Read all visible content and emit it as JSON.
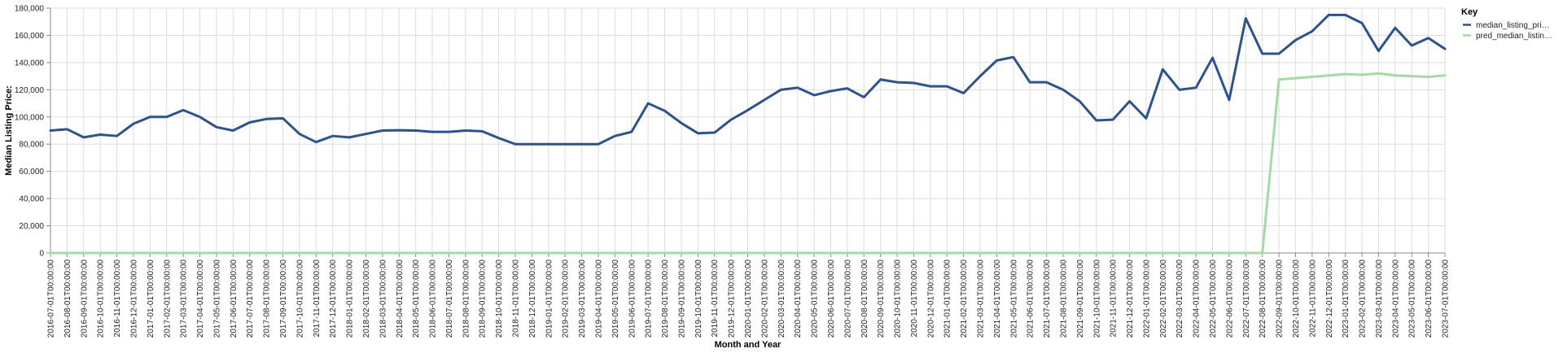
{
  "chart_data": {
    "type": "line",
    "title": "",
    "xlabel": "Month and Year",
    "ylabel": "Median Listing Price:",
    "ylim": [
      0,
      180000
    ],
    "yticks": [
      "0",
      "20,000",
      "40,000",
      "60,000",
      "80,000",
      "100,000",
      "120,000",
      "140,000",
      "160,000",
      "180,000"
    ],
    "grid": true,
    "legend": {
      "title": "Key",
      "placement": "top-right",
      "entries": [
        "median_listing_pri…",
        "pred_median_listin…"
      ]
    },
    "x": [
      "2016-07-01T00:00:00",
      "2016-08-01T00:00:00",
      "2016-09-01T00:00:00",
      "2016-10-01T00:00:00",
      "2016-11-01T00:00:00",
      "2016-12-01T00:00:00",
      "2017-01-01T00:00:00",
      "2017-02-01T00:00:00",
      "2017-03-01T00:00:00",
      "2017-04-01T00:00:00",
      "2017-05-01T00:00:00",
      "2017-06-01T00:00:00",
      "2017-07-01T00:00:00",
      "2017-08-01T00:00:00",
      "2017-09-01T00:00:00",
      "2017-10-01T00:00:00",
      "2017-11-01T00:00:00",
      "2017-12-01T00:00:00",
      "2018-01-01T00:00:00",
      "2018-02-01T00:00:00",
      "2018-03-01T00:00:00",
      "2018-04-01T00:00:00",
      "2018-05-01T00:00:00",
      "2018-06-01T00:00:00",
      "2018-07-01T00:00:00",
      "2018-08-01T00:00:00",
      "2018-09-01T00:00:00",
      "2018-10-01T00:00:00",
      "2018-11-01T00:00:00",
      "2018-12-01T00:00:00",
      "2019-01-01T00:00:00",
      "2019-02-01T00:00:00",
      "2019-03-01T00:00:00",
      "2019-04-01T00:00:00",
      "2019-05-01T00:00:00",
      "2019-06-01T00:00:00",
      "2019-07-01T00:00:00",
      "2019-08-01T00:00:00",
      "2019-09-01T00:00:00",
      "2019-10-01T00:00:00",
      "2019-11-01T00:00:00",
      "2019-12-01T00:00:00",
      "2020-01-01T00:00:00",
      "2020-02-01T00:00:00",
      "2020-03-01T00:00:00",
      "2020-04-01T00:00:00",
      "2020-05-01T00:00:00",
      "2020-06-01T00:00:00",
      "2020-07-01T00:00:00",
      "2020-08-01T00:00:00",
      "2020-09-01T00:00:00",
      "2020-10-01T00:00:00",
      "2020-11-01T00:00:00",
      "2020-12-01T00:00:00",
      "2021-01-01T00:00:00",
      "2021-02-01T00:00:00",
      "2021-03-01T00:00:00",
      "2021-04-01T00:00:00",
      "2021-05-01T00:00:00",
      "2021-06-01T00:00:00",
      "2021-07-01T00:00:00",
      "2021-08-01T00:00:00",
      "2021-09-01T00:00:00",
      "2021-10-01T00:00:00",
      "2021-11-01T00:00:00",
      "2021-12-01T00:00:00",
      "2022-01-01T00:00:00",
      "2022-02-01T00:00:00",
      "2022-03-01T00:00:00",
      "2022-04-01T00:00:00",
      "2022-05-01T00:00:00",
      "2022-06-01T00:00:00",
      "2022-07-01T00:00:00",
      "2022-08-01T00:00:00",
      "2022-09-01T00:00:00",
      "2022-10-01T00:00:00",
      "2022-11-01T00:00:00",
      "2022-12-01T00:00:00",
      "2023-01-01T00:00:00",
      "2023-02-01T00:00:00",
      "2023-03-01T00:00:00",
      "2023-04-01T00:00:00",
      "2023-05-01T00:00:00",
      "2023-06-01T00:00:00",
      "2023-07-01T00:00:00"
    ],
    "series": [
      {
        "name": "median_listing_pri…",
        "color": "#2a5396",
        "values": [
          90000,
          91000,
          85000,
          87000,
          86000,
          95000,
          100000,
          100000,
          105000,
          100000,
          92500,
          90000,
          96000,
          98500,
          99000,
          87500,
          81500,
          86000,
          85000,
          87500,
          90000,
          90200,
          90000,
          89000,
          89000,
          90000,
          89500,
          84500,
          80000,
          80000,
          80000,
          80000,
          80000,
          80000,
          86000,
          89000,
          110000,
          104500,
          95500,
          88000,
          88500,
          98000,
          105000,
          112500,
          120000,
          121500,
          116000,
          119000,
          121000,
          114500,
          127500,
          125500,
          125000,
          122500,
          122500,
          117500,
          130000,
          141500,
          144000,
          125500,
          125500,
          120000,
          111500,
          97500,
          98000,
          111500,
          99000,
          135000,
          120000,
          121500,
          143500,
          112500,
          172500,
          146500,
          146500,
          156500,
          163000,
          175000,
          175000,
          169000,
          148500,
          165500,
          152500,
          158000,
          150000
        ]
      },
      {
        "name": "pred_median_listin…",
        "color": "#a3dca0",
        "values": [
          0,
          0,
          0,
          0,
          0,
          0,
          0,
          0,
          0,
          0,
          0,
          0,
          0,
          0,
          0,
          0,
          0,
          0,
          0,
          0,
          0,
          0,
          0,
          0,
          0,
          0,
          0,
          0,
          0,
          0,
          0,
          0,
          0,
          0,
          0,
          0,
          0,
          0,
          0,
          0,
          0,
          0,
          0,
          0,
          0,
          0,
          0,
          0,
          0,
          0,
          0,
          0,
          0,
          0,
          0,
          0,
          0,
          0,
          0,
          0,
          0,
          0,
          0,
          0,
          0,
          0,
          0,
          0,
          0,
          0,
          0,
          0,
          0,
          0,
          127500,
          128500,
          129500,
          130500,
          131500,
          131000,
          132000,
          130500,
          130000,
          129500,
          130500
        ]
      }
    ]
  }
}
